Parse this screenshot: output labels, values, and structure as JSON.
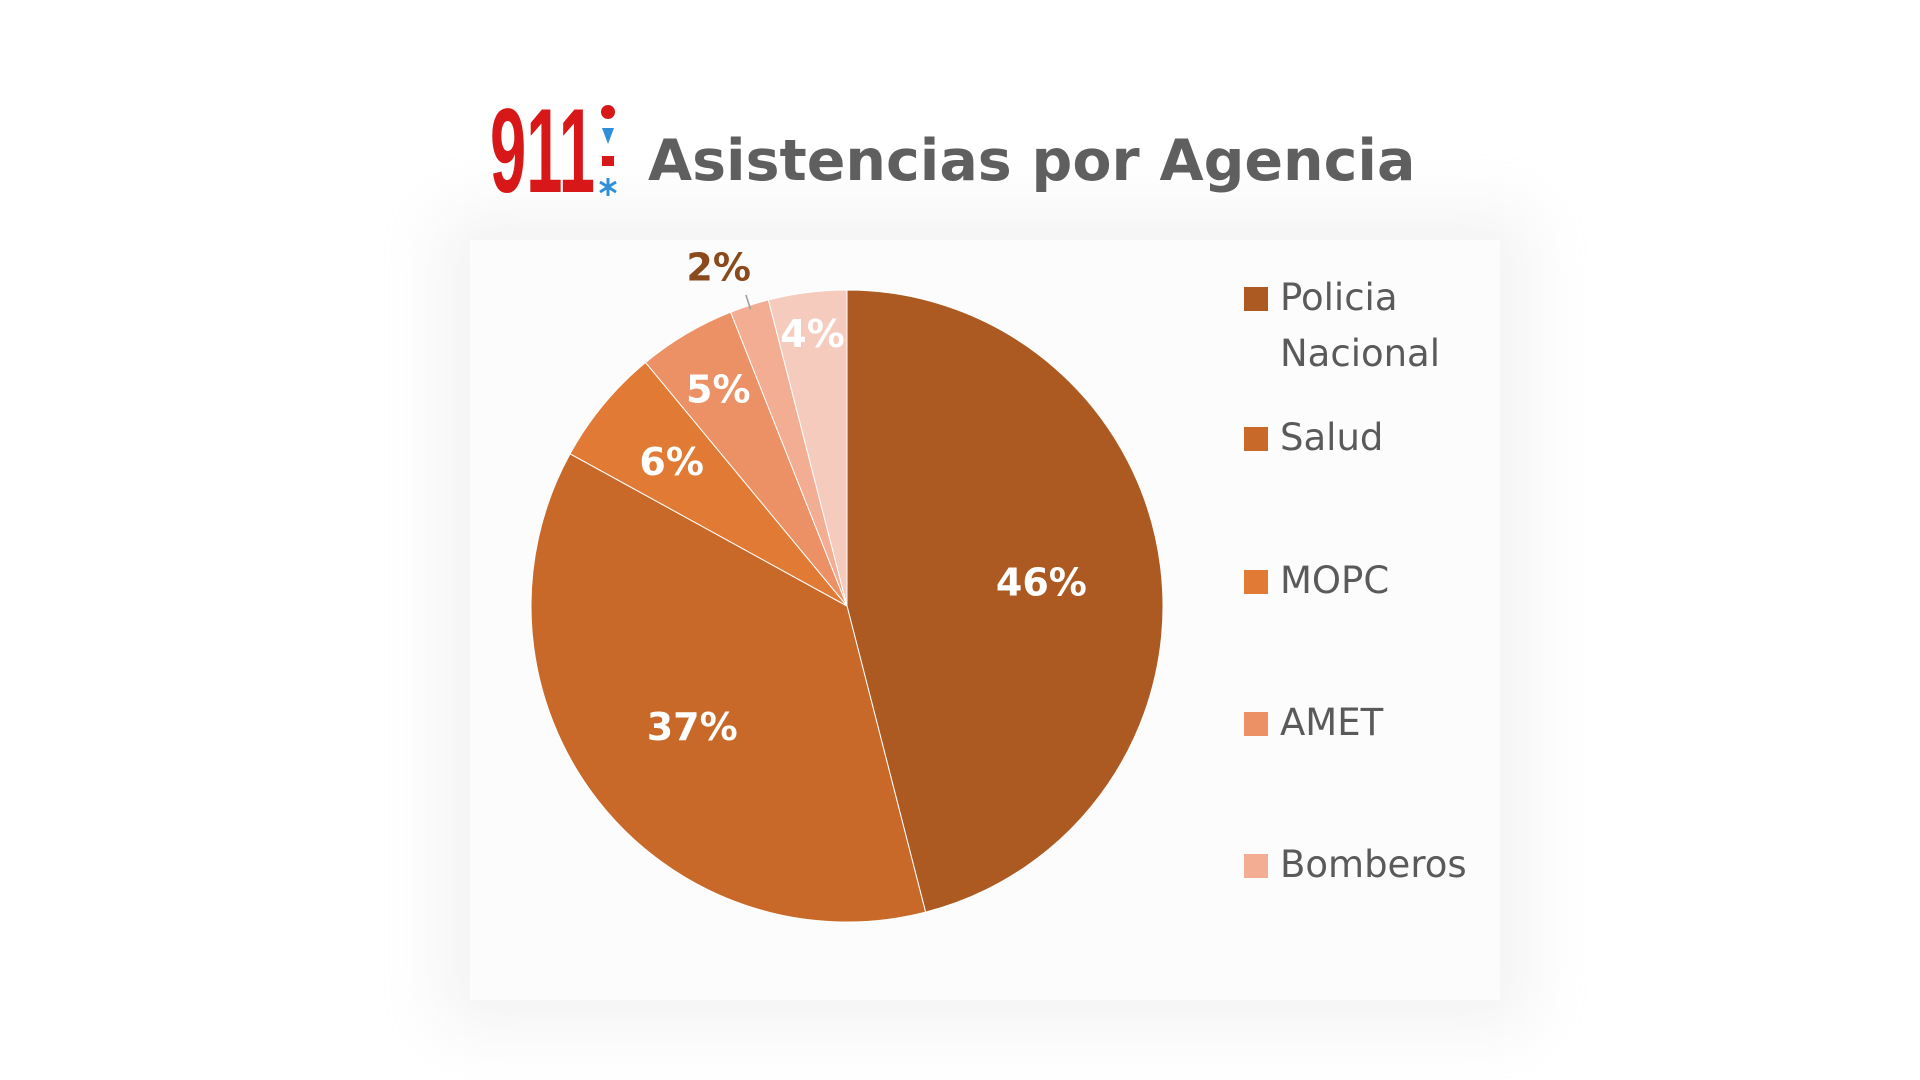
{
  "chart_data": {
    "type": "pie",
    "title": "Asistencias por Agencia",
    "logo_text": "911",
    "categories": [
      "Policia Nacional",
      "Salud",
      "MOPC",
      "AMET",
      "Bomberos",
      ""
    ],
    "values": [
      46,
      37,
      6,
      5,
      2,
      4
    ],
    "labels": [
      "46%",
      "37%",
      "6%",
      "5%",
      "2%",
      "4%"
    ],
    "colors": [
      "#ad5a22",
      "#c8692a",
      "#e07a35",
      "#ec9065",
      "#f2ad93",
      "#f5cbbe"
    ],
    "start_angle": "12 o'clock",
    "direction": "clockwise",
    "legend_position": "right"
  }
}
